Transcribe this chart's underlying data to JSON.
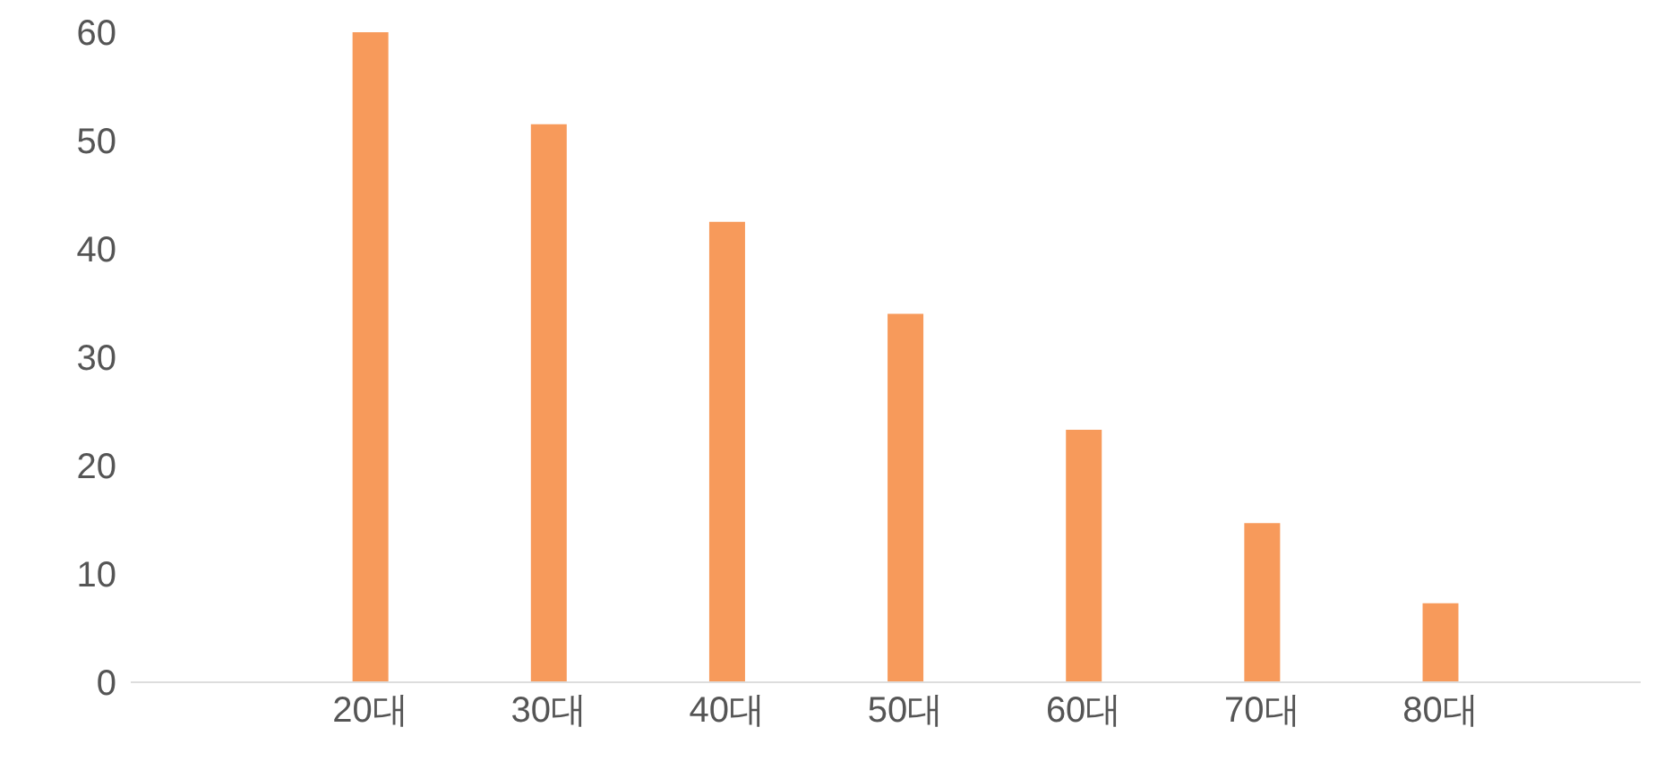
{
  "chart_data": {
    "type": "bar",
    "categories": [
      "20대",
      "30대",
      "40대",
      "50대",
      "60대",
      "70대",
      "80대"
    ],
    "values": [
      60,
      51.5,
      42.5,
      34,
      23.3,
      14.7,
      7.3
    ],
    "color": "#f79a5b",
    "ylim": [
      0,
      60
    ],
    "yticks": [
      0,
      10,
      20,
      30,
      40,
      50,
      60
    ],
    "grid": false,
    "legend": false
  }
}
